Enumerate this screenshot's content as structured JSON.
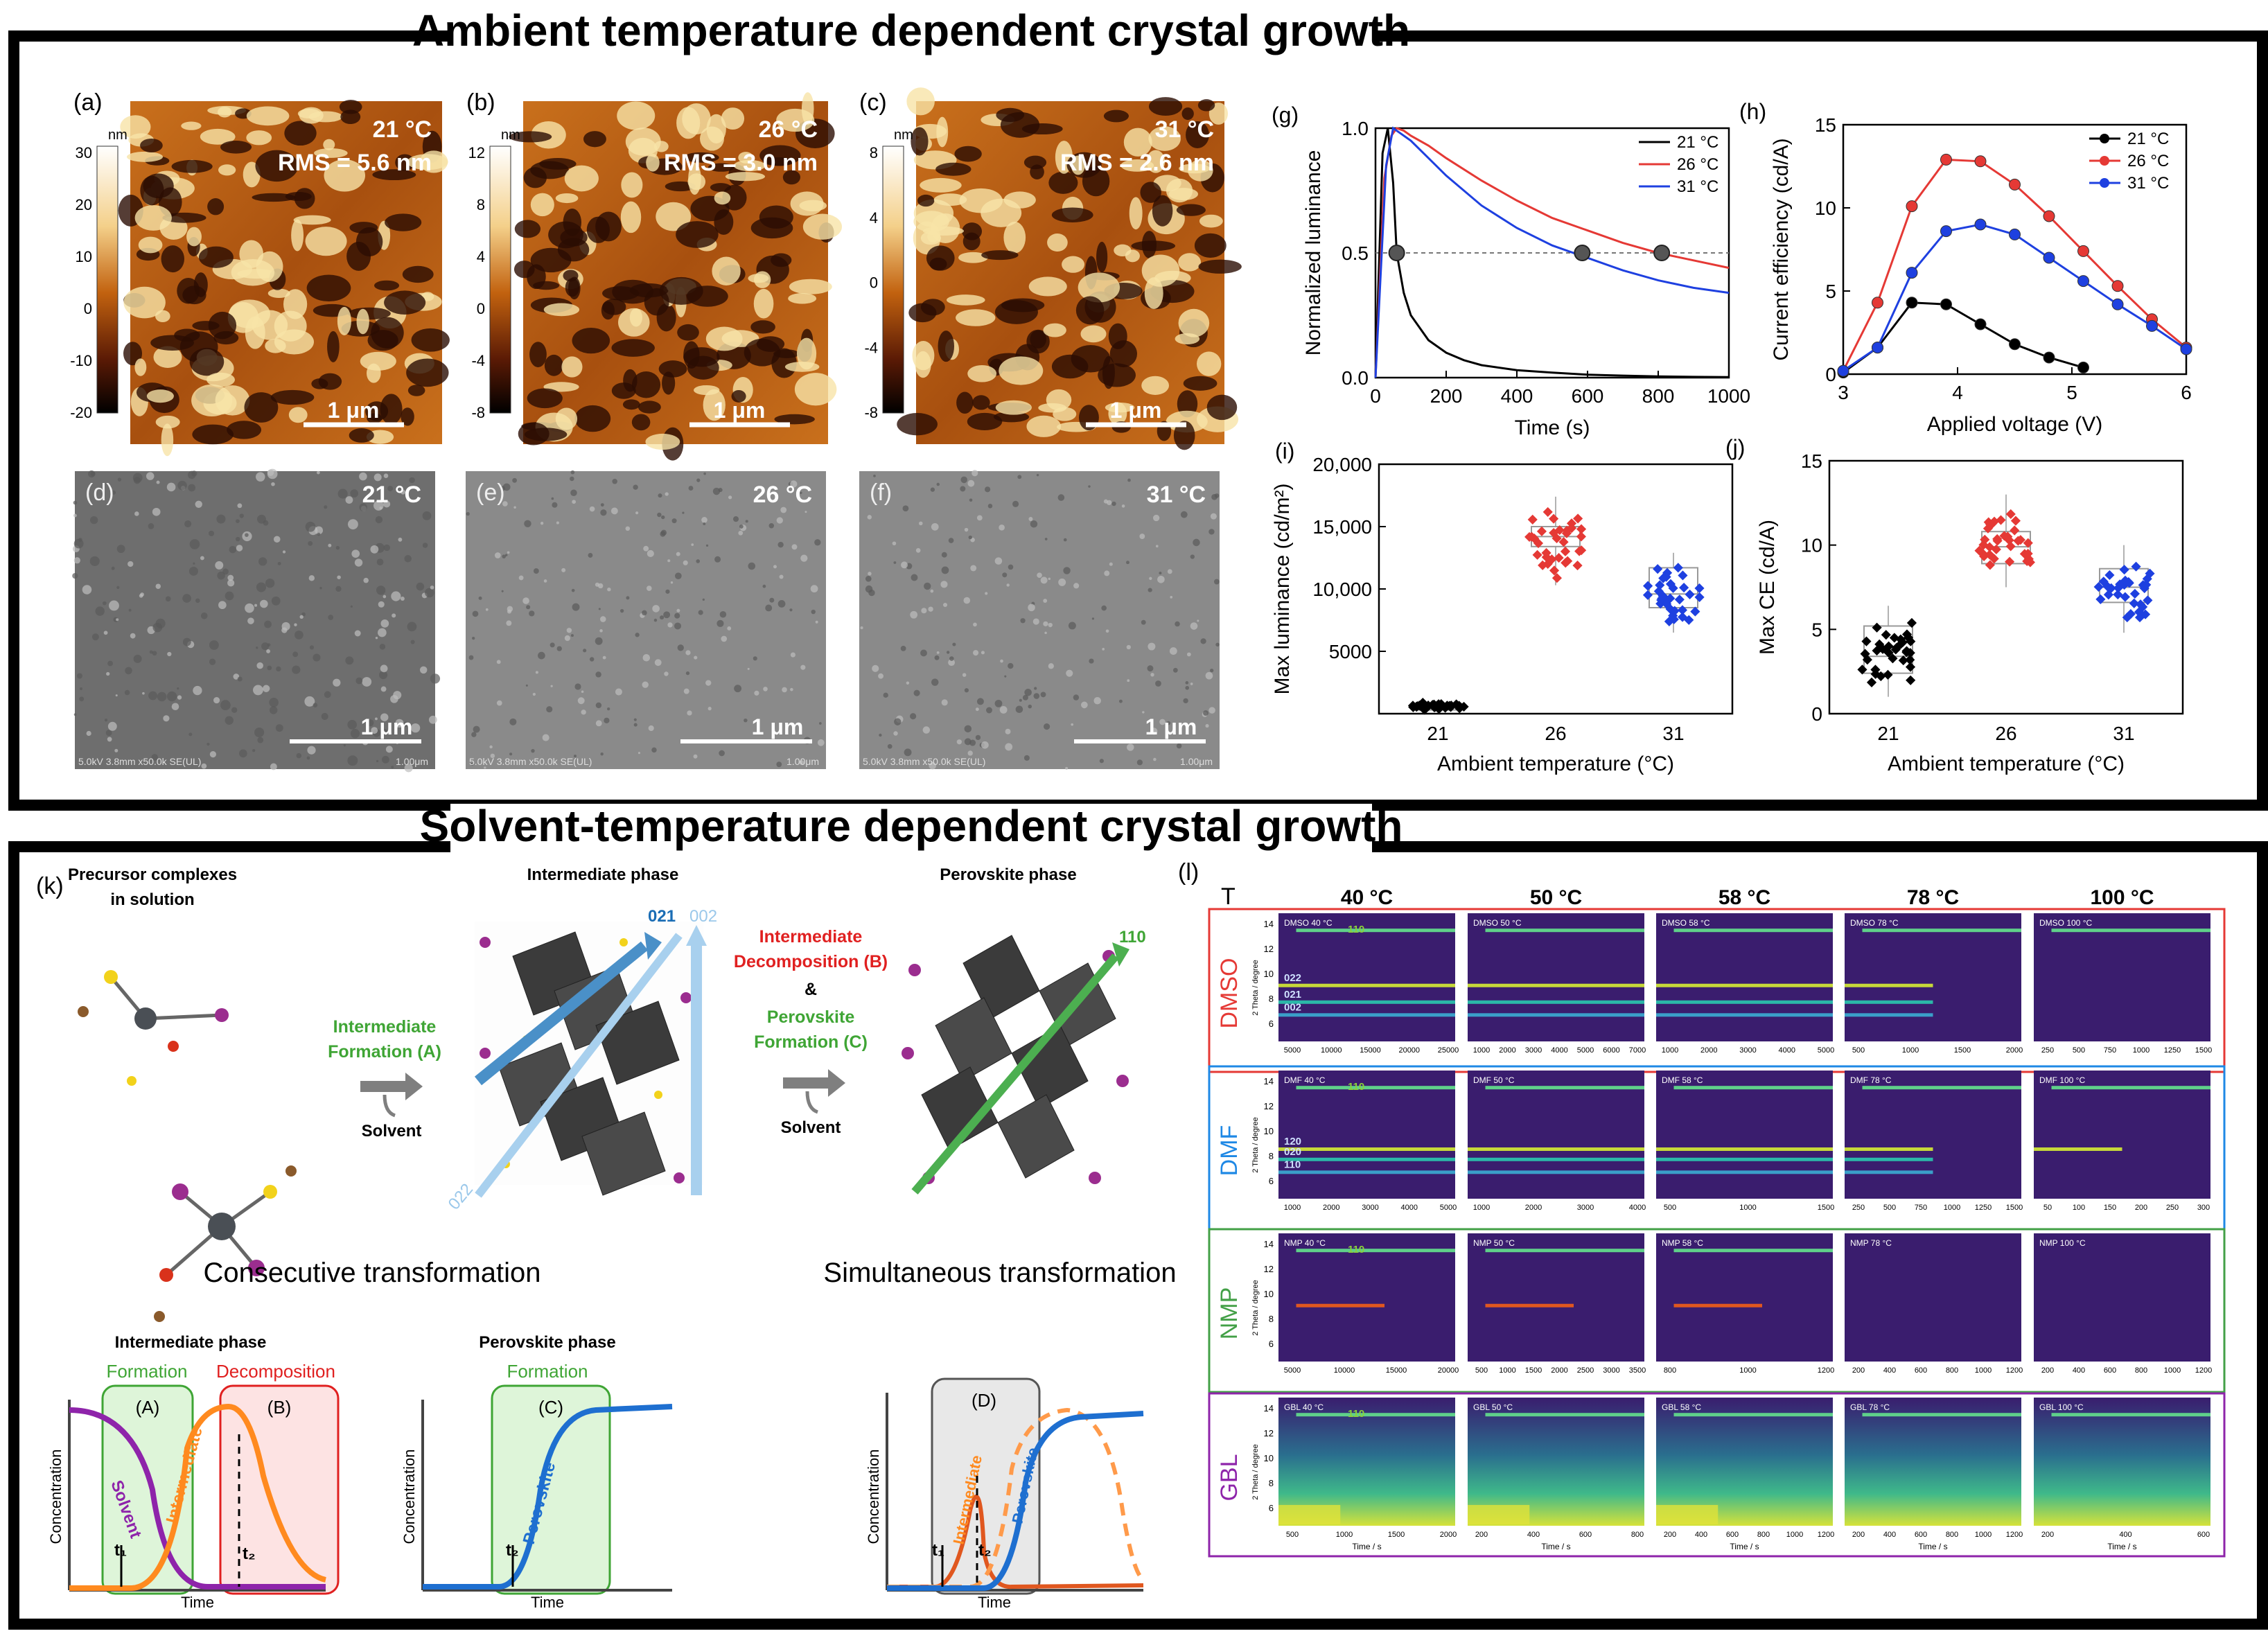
{
  "top_section": {
    "title": "Ambient temperature dependent crystal growth",
    "afm": [
      {
        "label": "(a)",
        "temp": "21 °C",
        "rms": "RMS = 5.6 nm",
        "unit": "nm",
        "ticks": [
          "30",
          "20",
          "10",
          "0",
          "-10",
          "-20"
        ],
        "scale": "1 μm"
      },
      {
        "label": "(b)",
        "temp": "26 °C",
        "rms": "RMS = 3.0 nm",
        "unit": "nm",
        "ticks": [
          "12",
          "8",
          "4",
          "0",
          "-4",
          "-8"
        ],
        "scale": "1 μm"
      },
      {
        "label": "(c)",
        "temp": "31 °C",
        "rms": "RMS = 2.6 nm",
        "unit": "nm",
        "ticks": [
          "8",
          "4",
          "0",
          "-4",
          "-8"
        ],
        "scale": "1 μm"
      }
    ],
    "sem": [
      {
        "label": "(d)",
        "temp": "21 °C",
        "scale": "1 μm",
        "footer": "5.0kV 3.8mm x50.0k SE(UL)",
        "bar_label": "1.00μm"
      },
      {
        "label": "(e)",
        "temp": "26 °C",
        "scale": "1 μm",
        "footer": "5.0kV 3.8mm x50.0k SE(UL)",
        "bar_label": "1.00μm"
      },
      {
        "label": "(f)",
        "temp": "31 °C",
        "scale": "1 μm",
        "footer": "5.0kV 3.8mm x50.0k SE(UL)",
        "bar_label": "1.00μm"
      }
    ]
  },
  "bottom_section": {
    "title": "Solvent-temperature dependent crystal growth",
    "k": {
      "label": "(k)",
      "precursor_title": "Precursor complexes in solution",
      "precursor_title_l1": "Precursor complexes",
      "precursor_title_l2": "in solution",
      "intermediate_title": "Intermediate phase",
      "perovskite_title": "Perovskite phase",
      "arrow_a_l1": "Intermediate",
      "arrow_a_l2": "Formation (A)",
      "solvent": "Solvent",
      "arrow_b_l1": "Intermediate",
      "arrow_b_l2": "Decomposition (B)",
      "amp": "&",
      "arrow_c_l1": "Perovskite",
      "arrow_c_l2": "Formation (C)",
      "plane_021": "021",
      "plane_002": "002",
      "plane_022": "022",
      "plane_110": "110",
      "consecutive": "Consecutive transformation",
      "simultaneous": "Simultaneous transformation",
      "sch1_title": "Intermediate phase",
      "sch1_formation": "Formation",
      "sch1_decomposition": "Decomposition",
      "sch2_title": "Perovskite phase",
      "sch2_formation": "Formation",
      "box_a": "(A)",
      "box_b": "(B)",
      "box_c": "(C)",
      "box_d": "(D)",
      "y_label": "Concentration",
      "x_label": "Time",
      "curve_solvent": "Solvent",
      "curve_intermediate": "Intermediate",
      "curve_perovskite": "Perovskite",
      "t1": "t₁",
      "t2": "t₂"
    },
    "l": {
      "label": "(l)",
      "t_label": "T",
      "temps": [
        "40 °C",
        "50 °C",
        "58 °C",
        "78 °C",
        "100 °C"
      ],
      "ylab": "2 Theta / degree",
      "xlab": "Time / s",
      "yticks": [
        "14",
        "12",
        "10",
        "8",
        "6"
      ],
      "solvents": [
        {
          "name": "DMSO",
          "color": "#e53935",
          "panel_tags": [
            "DMSO 40 °C",
            "DMSO 50 °C",
            "DMSO 58 °C",
            "DMSO 78 °C",
            "DMSO 100 °C"
          ],
          "peaks": [
            "110",
            "022",
            "021",
            "002"
          ],
          "xticks": [
            [
              "5000",
              "10000",
              "15000",
              "20000",
              "25000"
            ],
            [
              "1000",
              "2000",
              "3000",
              "4000",
              "5000",
              "6000",
              "7000"
            ],
            [
              "1000",
              "2000",
              "3000",
              "4000",
              "5000"
            ],
            [
              "500",
              "1000",
              "1500",
              "2000"
            ],
            [
              "250",
              "500",
              "750",
              "1000",
              "1250",
              "1500"
            ]
          ]
        },
        {
          "name": "DMF",
          "color": "#1e88e5",
          "panel_tags": [
            "DMF 40 °C",
            "DMF 50 °C",
            "DMF 58 °C",
            "DMF 78 °C",
            "DMF 100 °C"
          ],
          "peaks": [
            "110",
            "120",
            "020",
            "110"
          ],
          "xticks": [
            [
              "1000",
              "2000",
              "3000",
              "4000",
              "5000"
            ],
            [
              "1000",
              "2000",
              "3000",
              "4000"
            ],
            [
              "500",
              "1000",
              "1500"
            ],
            [
              "250",
              "500",
              "750",
              "1000",
              "1250",
              "1500"
            ],
            [
              "50",
              "100",
              "150",
              "200",
              "250",
              "300"
            ]
          ]
        },
        {
          "name": "NMP",
          "color": "#43a047",
          "panel_tags": [
            "NMP 40 °C",
            "NMP 50 °C",
            "NMP 58 °C",
            "NMP 78 °C",
            "NMP 100 °C"
          ],
          "peaks": [
            "110"
          ],
          "xticks": [
            [
              "5000",
              "10000",
              "15000",
              "20000"
            ],
            [
              "500",
              "1000",
              "1500",
              "2000",
              "2500",
              "3000",
              "3500"
            ],
            [
              "800",
              "1000",
              "1200"
            ],
            [
              "200",
              "400",
              "600",
              "800",
              "1000",
              "1200"
            ],
            [
              "200",
              "400",
              "600",
              "800",
              "1000",
              "1200"
            ]
          ]
        },
        {
          "name": "GBL",
          "color": "#8e24aa",
          "panel_tags": [
            "GBL 40 °C",
            "GBL 50 °C",
            "GBL 58 °C",
            "GBL 78 °C",
            "GBL 100 °C"
          ],
          "peaks": [
            "110"
          ],
          "xticks": [
            [
              "500",
              "1000",
              "1500",
              "2000"
            ],
            [
              "200",
              "400",
              "600",
              "800"
            ],
            [
              "200",
              "400",
              "600",
              "800",
              "1000",
              "1200"
            ],
            [
              "200",
              "400",
              "600",
              "800",
              "1000",
              "1200"
            ],
            [
              "200",
              "400",
              "600"
            ]
          ]
        }
      ]
    }
  },
  "chart_data": [
    {
      "id": "g",
      "type": "line",
      "label": "(g)",
      "xlabel": "Time (s)",
      "ylabel": "Normalized luminance",
      "xlim": [
        0,
        1000
      ],
      "ylim": [
        0,
        1.0
      ],
      "xticks": [
        0,
        200,
        400,
        600,
        800,
        1000
      ],
      "yticks": [
        0.0,
        0.5,
        1.0
      ],
      "yticklabels": [
        "0.0",
        "0.5",
        "1.0"
      ],
      "reference_line": 0.5,
      "half_life_markers": [
        {
          "x": 60,
          "y": 0.5
        },
        {
          "x": 585,
          "y": 0.5
        },
        {
          "x": 810,
          "y": 0.5
        }
      ],
      "legend": "top-right",
      "series": [
        {
          "name": "21 °C",
          "color": "#000000",
          "x": [
            0,
            20,
            35,
            50,
            60,
            80,
            100,
            150,
            200,
            250,
            300,
            400,
            500,
            600,
            700,
            800,
            900,
            1000
          ],
          "y": [
            0,
            0.9,
            1.0,
            0.78,
            0.5,
            0.34,
            0.25,
            0.15,
            0.1,
            0.07,
            0.05,
            0.03,
            0.02,
            0.012,
            0.008,
            0.005,
            0.003,
            0.002
          ]
        },
        {
          "name": "26 °C",
          "color": "#e53935",
          "x": [
            0,
            25,
            45,
            60,
            80,
            100,
            150,
            200,
            300,
            400,
            500,
            600,
            700,
            800,
            900,
            1000
          ],
          "y": [
            0,
            0.8,
            0.97,
            1.0,
            0.99,
            0.97,
            0.93,
            0.88,
            0.79,
            0.71,
            0.64,
            0.59,
            0.54,
            0.5,
            0.47,
            0.44
          ]
        },
        {
          "name": "31 °C",
          "color": "#1e40e0",
          "x": [
            0,
            30,
            50,
            70,
            100,
            150,
            200,
            300,
            400,
            500,
            600,
            700,
            800,
            900,
            1000
          ],
          "y": [
            0,
            0.85,
            1.0,
            0.98,
            0.95,
            0.88,
            0.81,
            0.69,
            0.6,
            0.53,
            0.48,
            0.43,
            0.39,
            0.36,
            0.34
          ]
        }
      ]
    },
    {
      "id": "h",
      "type": "line",
      "label": "(h)",
      "xlabel": "Applied voltage (V)",
      "ylabel": "Current efficiency (cd/A)",
      "xlim": [
        3,
        6
      ],
      "ylim": [
        0,
        15
      ],
      "xticks": [
        3,
        4,
        5,
        6
      ],
      "yticks": [
        0,
        5,
        10,
        15
      ],
      "legend": "top-right",
      "series": [
        {
          "name": "21 °C",
          "color": "#000000",
          "x": [
            3.0,
            3.3,
            3.6,
            3.9,
            4.2,
            4.5,
            4.8,
            5.1
          ],
          "y": [
            0.1,
            1.6,
            4.3,
            4.2,
            3.0,
            1.8,
            1.0,
            0.4
          ]
        },
        {
          "name": "26 °C",
          "color": "#e53935",
          "x": [
            3.0,
            3.3,
            3.6,
            3.9,
            4.2,
            4.5,
            4.8,
            5.1,
            5.4,
            5.7,
            6.0
          ],
          "y": [
            0.2,
            4.3,
            10.1,
            12.9,
            12.8,
            11.4,
            9.5,
            7.4,
            5.3,
            3.3,
            1.6
          ]
        },
        {
          "name": "31 °C",
          "color": "#1e40e0",
          "x": [
            3.0,
            3.3,
            3.6,
            3.9,
            4.2,
            4.5,
            4.8,
            5.1,
            5.4,
            5.7,
            6.0
          ],
          "y": [
            0.2,
            1.6,
            6.1,
            8.6,
            9.0,
            8.4,
            7.0,
            5.6,
            4.2,
            2.9,
            1.5
          ]
        }
      ]
    },
    {
      "id": "i",
      "type": "scatter",
      "label": "(i)",
      "xlabel": "Ambient temperature (°C)",
      "ylabel": "Max luminance (cd/m²)",
      "categories": [
        "21",
        "26",
        "31"
      ],
      "ylim": [
        0,
        20000
      ],
      "yticks": [
        5000,
        10000,
        15000,
        20000
      ],
      "yticklabels": [
        "5000",
        "10,000",
        "15,000",
        "20,000"
      ],
      "boxes": [
        {
          "category": "21",
          "color": "#000000",
          "q1": 300,
          "median": 550,
          "q3": 800,
          "min": 100,
          "max": 1000
        },
        {
          "category": "26",
          "color": "#e53935",
          "q1": 13400,
          "median": 14200,
          "q3": 15000,
          "min": 10300,
          "max": 17400
        },
        {
          "category": "31",
          "color": "#1e40e0",
          "q1": 8500,
          "median": 9600,
          "q3": 11700,
          "min": 6500,
          "max": 12900
        }
      ]
    },
    {
      "id": "j",
      "type": "scatter",
      "label": "(j)",
      "xlabel": "Ambient temperature (°C)",
      "ylabel": "Max CE (cd/A)",
      "categories": [
        "21",
        "26",
        "31"
      ],
      "ylim": [
        0,
        15
      ],
      "yticks": [
        0,
        5,
        10,
        15
      ],
      "yticklabels": [
        "0",
        "5",
        "10",
        "15"
      ],
      "boxes": [
        {
          "category": "21",
          "color": "#000000",
          "q1": 2.4,
          "median": 3.4,
          "q3": 5.2,
          "min": 1.0,
          "max": 6.4
        },
        {
          "category": "26",
          "color": "#e53935",
          "q1": 8.9,
          "median": 9.9,
          "q3": 10.8,
          "min": 7.5,
          "max": 13.0
        },
        {
          "category": "31",
          "color": "#1e40e0",
          "q1": 6.6,
          "median": 7.5,
          "q3": 8.6,
          "min": 4.8,
          "max": 10.0
        }
      ]
    }
  ]
}
